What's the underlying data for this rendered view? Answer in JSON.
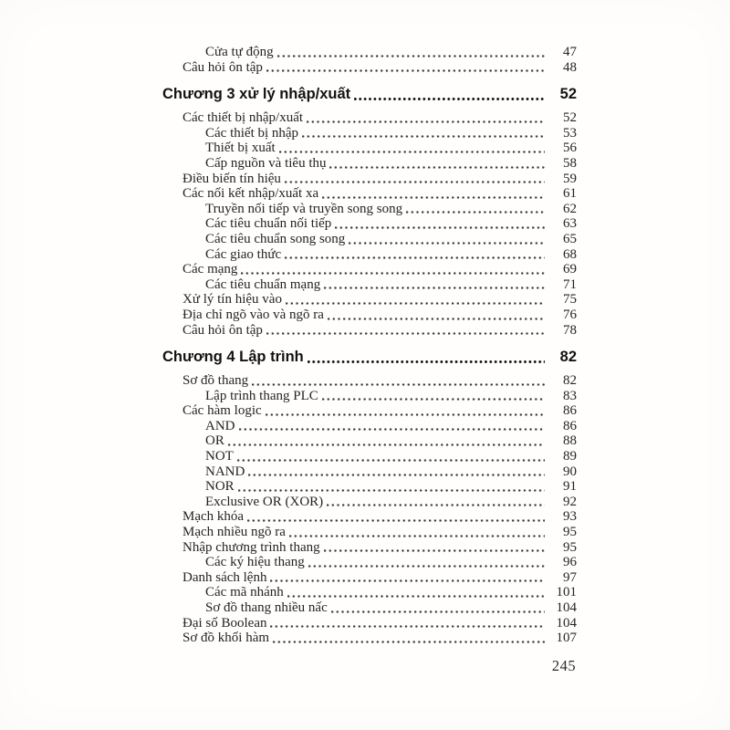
{
  "footer": {
    "page_number": "245"
  },
  "colors": {
    "ink": "#242424",
    "heading_ink": "#131313",
    "paper": "#fffefd"
  },
  "toc": {
    "entries": [
      {
        "kind": "item",
        "level": 2,
        "title": "Cửa tự động",
        "page": "47"
      },
      {
        "kind": "item",
        "level": 1,
        "title": "Câu hỏi ôn tập",
        "page": "48"
      },
      {
        "kind": "chapter",
        "level": 0,
        "title": "Chương 3 xử lý nhập/xuất",
        "page": "52"
      },
      {
        "kind": "item",
        "level": 1,
        "title": "Các thiết bị nhập/xuất",
        "page": "52"
      },
      {
        "kind": "item",
        "level": 2,
        "title": "Các thiết bị nhập",
        "page": "53"
      },
      {
        "kind": "item",
        "level": 2,
        "title": "Thiết bị xuất",
        "page": "56"
      },
      {
        "kind": "item",
        "level": 2,
        "title": "Cấp nguồn và tiêu thụ",
        "page": "58"
      },
      {
        "kind": "item",
        "level": 1,
        "title": "Điều biến tín hiệu",
        "page": "59"
      },
      {
        "kind": "item",
        "level": 1,
        "title": "Các nối kết nhập/xuất xa",
        "page": "61"
      },
      {
        "kind": "item",
        "level": 2,
        "title": "Truyền nối tiếp và truyền song song",
        "page": "62"
      },
      {
        "kind": "item",
        "level": 2,
        "title": "Các tiêu chuẩn nối tiếp",
        "page": "63"
      },
      {
        "kind": "item",
        "level": 2,
        "title": "Các tiêu chuẩn song song",
        "page": "65"
      },
      {
        "kind": "item",
        "level": 2,
        "title": "Các giao thức",
        "page": "68"
      },
      {
        "kind": "item",
        "level": 1,
        "title": "Các mạng",
        "page": "69"
      },
      {
        "kind": "item",
        "level": 2,
        "title": "Các tiêu chuẩn mạng",
        "page": "71"
      },
      {
        "kind": "item",
        "level": 1,
        "title": "Xử lý tín hiệu vào",
        "page": "75"
      },
      {
        "kind": "item",
        "level": 1,
        "title": "Địa chỉ ngõ vào và ngõ ra",
        "page": "76"
      },
      {
        "kind": "item",
        "level": 1,
        "title": "Câu hỏi ôn tập",
        "page": "78"
      },
      {
        "kind": "chapter",
        "level": 0,
        "title": "Chương 4 Lập trình",
        "page": "82"
      },
      {
        "kind": "item",
        "level": 1,
        "title": "Sơ đồ thang",
        "page": "82"
      },
      {
        "kind": "item",
        "level": 2,
        "title": "Lập trình thang PLC",
        "page": "83"
      },
      {
        "kind": "item",
        "level": 1,
        "title": "Các hàm logic",
        "page": "86"
      },
      {
        "kind": "item",
        "level": 2,
        "title": "AND",
        "page": "86"
      },
      {
        "kind": "item",
        "level": 2,
        "title": "OR",
        "page": "88"
      },
      {
        "kind": "item",
        "level": 2,
        "title": "NOT",
        "page": "89"
      },
      {
        "kind": "item",
        "level": 2,
        "title": "NAND",
        "page": "90"
      },
      {
        "kind": "item",
        "level": 2,
        "title": "NOR",
        "page": "91"
      },
      {
        "kind": "item",
        "level": 2,
        "title": "Exclusive OR (XOR)",
        "page": "92"
      },
      {
        "kind": "item",
        "level": 1,
        "title": "Mạch khóa",
        "page": "93"
      },
      {
        "kind": "item",
        "level": 1,
        "title": "Mạch nhiều ngõ ra",
        "page": "95"
      },
      {
        "kind": "item",
        "level": 1,
        "title": "Nhập chương trình thang",
        "page": "95"
      },
      {
        "kind": "item",
        "level": 2,
        "title": "Các ký hiệu thang",
        "page": "96"
      },
      {
        "kind": "item",
        "level": 1,
        "title": "Danh sách lệnh",
        "page": "97"
      },
      {
        "kind": "item",
        "level": 2,
        "title": "Các mã nhánh",
        "page": "101"
      },
      {
        "kind": "item",
        "level": 2,
        "title": "Sơ đồ thang nhiều nấc",
        "page": "104"
      },
      {
        "kind": "item",
        "level": 1,
        "title": "Đại số Boolean",
        "page": "104"
      },
      {
        "kind": "item",
        "level": 1,
        "title": "Sơ đồ khối hàm",
        "page": "107"
      }
    ]
  }
}
